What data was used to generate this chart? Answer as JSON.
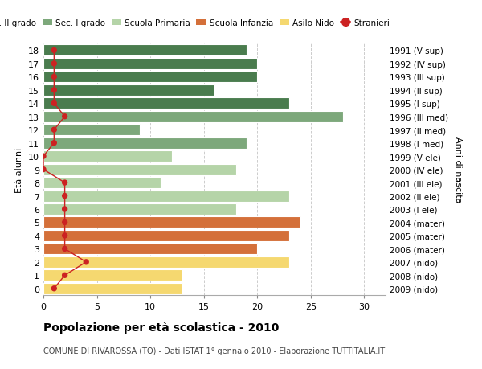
{
  "ages": [
    18,
    17,
    16,
    15,
    14,
    13,
    12,
    11,
    10,
    9,
    8,
    7,
    6,
    5,
    4,
    3,
    2,
    1,
    0
  ],
  "years": [
    "1991 (V sup)",
    "1992 (IV sup)",
    "1993 (III sup)",
    "1994 (II sup)",
    "1995 (I sup)",
    "1996 (III med)",
    "1997 (II med)",
    "1998 (I med)",
    "1999 (V ele)",
    "2000 (IV ele)",
    "2001 (III ele)",
    "2002 (II ele)",
    "2003 (I ele)",
    "2004 (mater)",
    "2005 (mater)",
    "2006 (mater)",
    "2007 (nido)",
    "2008 (nido)",
    "2009 (nido)"
  ],
  "values": [
    19,
    20,
    20,
    16,
    23,
    28,
    9,
    19,
    12,
    18,
    11,
    23,
    18,
    24,
    23,
    20,
    23,
    13,
    13
  ],
  "stranieri": [
    1,
    1,
    1,
    1,
    1,
    2,
    1,
    1,
    0,
    0,
    2,
    2,
    2,
    2,
    2,
    2,
    4,
    2,
    1
  ],
  "bar_color_per_age": [
    "#4a7c4e",
    "#4a7c4e",
    "#4a7c4e",
    "#4a7c4e",
    "#4a7c4e",
    "#7da87b",
    "#7da87b",
    "#7da87b",
    "#b5d4a8",
    "#b5d4a8",
    "#b5d4a8",
    "#b5d4a8",
    "#b5d4a8",
    "#d4703a",
    "#d4703a",
    "#d4703a",
    "#f5d870",
    "#f5d870",
    "#f5d870"
  ],
  "stranieri_color": "#cc2222",
  "stranieri_line_color": "#cc2222",
  "background_color": "#ffffff",
  "grid_color": "#cccccc",
  "title": "Popolazione per età scolastica - 2010",
  "subtitle": "COMUNE DI RIVAROSSA (TO) - Dati ISTAT 1° gennaio 2010 - Elaborazione TUTTITALIA.IT",
  "ylabel_left": "Età alunni",
  "ylabel_right": "Anni di nascita",
  "xlim": [
    0,
    32
  ],
  "xticks": [
    0,
    5,
    10,
    15,
    20,
    25,
    30
  ],
  "legend_labels": [
    "Sec. II grado",
    "Sec. I grado",
    "Scuola Primaria",
    "Scuola Infanzia",
    "Asilo Nido",
    "Stranieri"
  ],
  "legend_colors": [
    "#4a7c4e",
    "#7da87b",
    "#b5d4a8",
    "#d4703a",
    "#f5d870",
    "#cc2222"
  ]
}
